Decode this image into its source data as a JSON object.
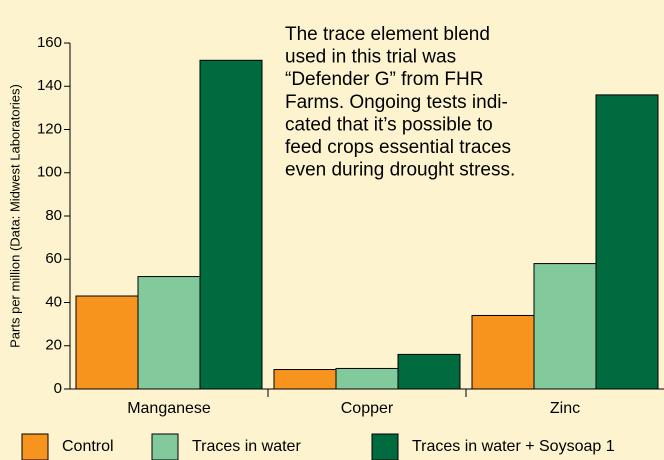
{
  "chart_data": {
    "type": "bar",
    "y_label": "Parts per million (Data: Midwest Laboratories)",
    "annotation": [
      "The trace element blend",
      "used in this trial was",
      "“Defender G” from FHR",
      "Farms. Ongoing tests indi-",
      "cated that it’s possible to",
      "feed crops essential traces",
      "even during drought stress."
    ],
    "categories": [
      "Manganese",
      "Copper",
      "Zinc"
    ],
    "series": [
      {
        "name": "Control",
        "color": "#f7941d",
        "values": [
          43,
          9,
          34
        ]
      },
      {
        "name": "Traces in water",
        "color": "#82c99b",
        "values": [
          52,
          9.5,
          58
        ]
      },
      {
        "name": "Traces in water + Soysoap 1",
        "color": "#006b3f",
        "values": [
          152,
          16,
          136
        ]
      }
    ],
    "ylim": [
      0,
      160
    ],
    "yticks": [
      0,
      20,
      40,
      60,
      80,
      100,
      120,
      140,
      160
    ],
    "legend": "bottom"
  }
}
